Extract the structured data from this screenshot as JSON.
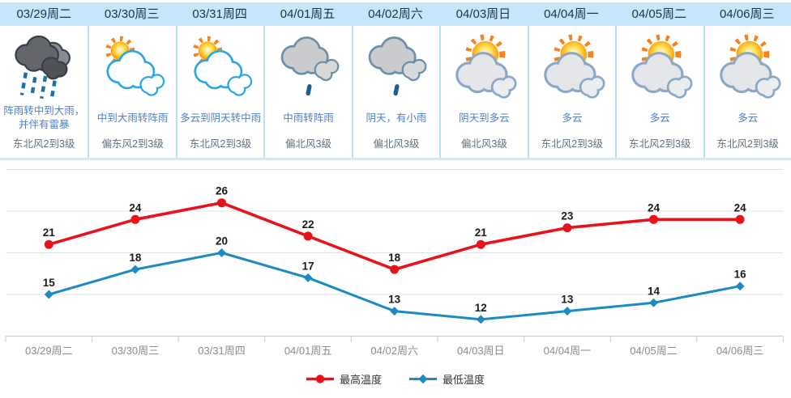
{
  "forecast": {
    "days": [
      {
        "date": "03/29周二",
        "icon": "#i-storm-rain",
        "condition": "阵雨转中到大雨，并伴有雷暴",
        "wind": "东北风2到3级"
      },
      {
        "date": "03/30周三",
        "icon": "#i-sun-cloud-blue",
        "condition": "中到大雨转阵雨",
        "wind": "偏东风2到3级"
      },
      {
        "date": "03/31周四",
        "icon": "#i-sun-cloud-blue",
        "condition": "多云到阴天转中雨",
        "wind": "东北风2到3级"
      },
      {
        "date": "04/01周五",
        "icon": "#i-cloud-drizzle",
        "condition": "中雨转阵雨",
        "wind": "偏北风3级"
      },
      {
        "date": "04/02周六",
        "icon": "#i-cloud-drizzle",
        "condition": "阴天，有小雨",
        "wind": "偏北风3级"
      },
      {
        "date": "04/03周日",
        "icon": "#i-sun-cloud",
        "condition": "阴天到多云",
        "wind": "偏北风3级"
      },
      {
        "date": "04/04周一",
        "icon": "#i-sun-cloud",
        "condition": "多云",
        "wind": "东北风2到3级"
      },
      {
        "date": "04/05周二",
        "icon": "#i-sun-cloud",
        "condition": "多云",
        "wind": "东北风2到3级"
      },
      {
        "date": "04/06周三",
        "icon": "#i-sun-cloud",
        "condition": "多云",
        "wind": "东北风2到3级"
      }
    ]
  },
  "chart_data": {
    "type": "line",
    "categories": [
      "03/29周二",
      "03/30周三",
      "03/31周四",
      "04/01周五",
      "04/02周六",
      "04/03周日",
      "04/04周一",
      "04/05周二",
      "04/06周三"
    ],
    "series": [
      {
        "name": "最高温度",
        "color": "#e8121a",
        "marker": "circle",
        "values": [
          21,
          24,
          26,
          22,
          18,
          21,
          23,
          24,
          24
        ]
      },
      {
        "name": "最低温度",
        "color": "#1d8ac0",
        "marker": "diamond",
        "values": [
          15,
          18,
          20,
          17,
          13,
          12,
          13,
          14,
          16
        ]
      }
    ],
    "title": "",
    "xlabel": "",
    "ylabel": "",
    "ylim": [
      10,
      30
    ],
    "grid": true,
    "grid_values": [
      15,
      20,
      25,
      30
    ],
    "legend_position": "bottom"
  },
  "colors": {
    "header_bg": "#c6e6f9",
    "panel_divider": "#b9e1f6",
    "panel_border": "#cdeafb",
    "date_text": "#1d3347",
    "condition_text": "#4e7fc6",
    "wind_text": "#5e7080",
    "grid_line": "#e2e2e2",
    "axis_line": "#c9c9c9",
    "axis_label": "#8c8c8c",
    "point_label": "#1a1a1a"
  }
}
